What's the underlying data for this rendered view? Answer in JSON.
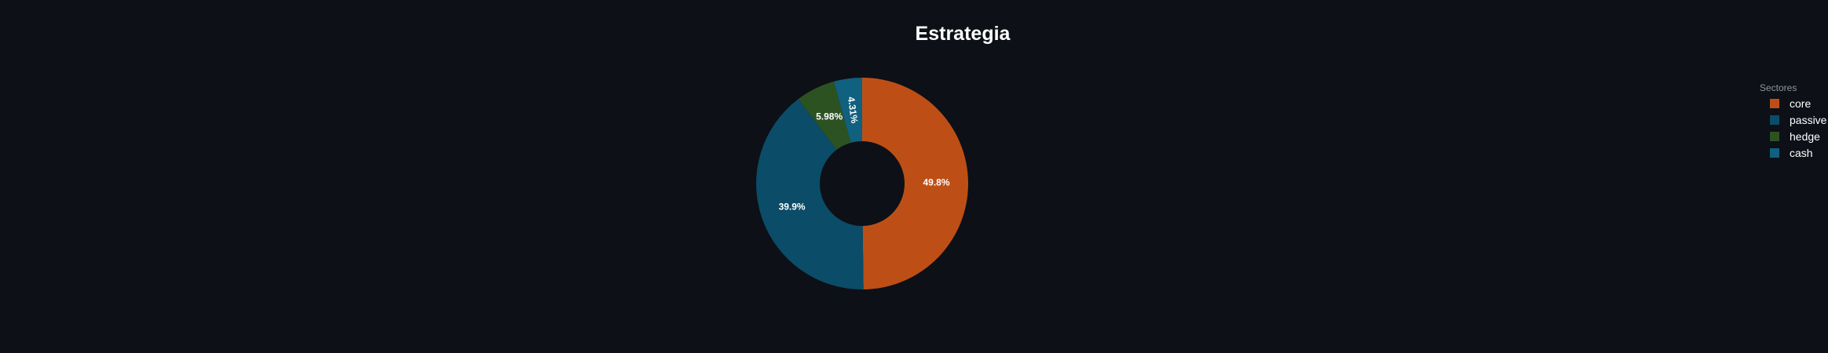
{
  "chart_data": {
    "type": "pie",
    "title": "Estrategia",
    "hole": 0.4,
    "legend_title": "Sectores",
    "legend_position": "top-right",
    "slices": [
      {
        "name": "core",
        "value": 49.8,
        "label": "49.8%",
        "color": "#bd4f16"
      },
      {
        "name": "passive",
        "value": 39.9,
        "label": "39.9%",
        "color": "#0b4c68"
      },
      {
        "name": "hedge",
        "value": 5.98,
        "label": "5.98%",
        "color": "#2c5222"
      },
      {
        "name": "cash",
        "value": 4.31,
        "label": "4.31%",
        "color": "#10607f"
      }
    ]
  },
  "colors": {
    "background": "#0d1017"
  }
}
